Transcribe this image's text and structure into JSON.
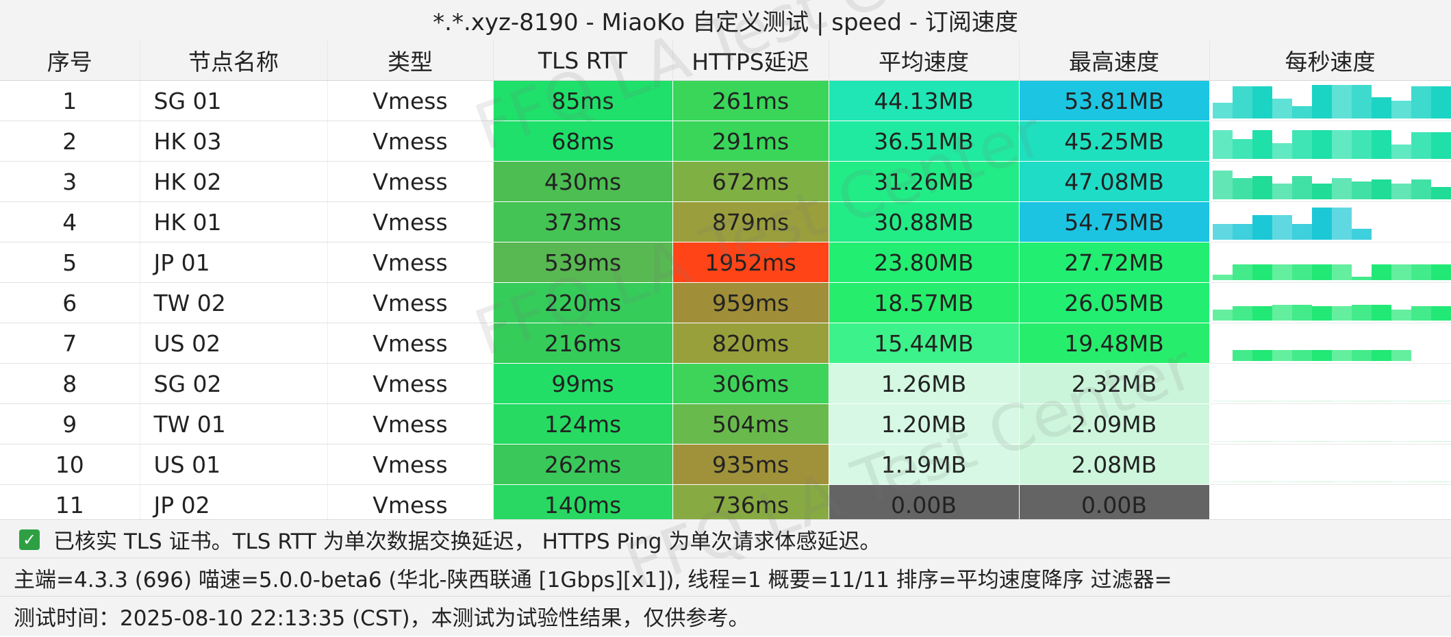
{
  "title": "*.*.xyz-8190 - MiaoKo 自定义测试 | speed - 订阅速度",
  "columns": [
    "序号",
    "节点名称",
    "类型",
    "TLS RTT",
    "HTTPS延迟",
    "平均速度",
    "最高速度",
    "每秒速度"
  ],
  "rows": [
    {
      "idx": "1",
      "name": "SG 01",
      "type": "Vmess",
      "tls": "85ms",
      "https": "261ms",
      "avg": "44.13MB",
      "max": "53.81MB",
      "tls_color": "#1ee06a",
      "https_color": "#3ad65a",
      "avg_color": "#1fe6b4",
      "max_color": "#1cc6e2"
    },
    {
      "idx": "2",
      "name": "HK 03",
      "type": "Vmess",
      "tls": "68ms",
      "https": "291ms",
      "avg": "36.51MB",
      "max": "45.25MB",
      "tls_color": "#1ee06a",
      "https_color": "#3ad65a",
      "avg_color": "#20eaa0",
      "max_color": "#1fe0be"
    },
    {
      "idx": "3",
      "name": "HK 02",
      "type": "Vmess",
      "tls": "430ms",
      "https": "672ms",
      "avg": "31.26MB",
      "max": "47.08MB",
      "tls_color": "#4cbe52",
      "https_color": "#7eb044",
      "avg_color": "#21ec86",
      "max_color": "#1edcc6"
    },
    {
      "idx": "4",
      "name": "HK 01",
      "type": "Vmess",
      "tls": "373ms",
      "https": "879ms",
      "avg": "30.88MB",
      "max": "54.75MB",
      "tls_color": "#44c454",
      "https_color": "#9a9e3c",
      "avg_color": "#21ec86",
      "max_color": "#1cc4e2"
    },
    {
      "idx": "5",
      "name": "JP 01",
      "type": "Vmess",
      "tls": "539ms",
      "https": "1952ms",
      "avg": "23.80MB",
      "max": "27.72MB",
      "tls_color": "#58b852",
      "https_color": "#ff4418",
      "avg_color": "#22ee72",
      "max_color": "#22ee72"
    },
    {
      "idx": "6",
      "name": "TW 02",
      "type": "Vmess",
      "tls": "220ms",
      "https": "959ms",
      "avg": "18.57MB",
      "max": "26.05MB",
      "tls_color": "#36cc5a",
      "https_color": "#a08e38",
      "avg_color": "#26ee6c",
      "max_color": "#22ee72"
    },
    {
      "idx": "7",
      "name": "US 02",
      "type": "Vmess",
      "tls": "216ms",
      "https": "820ms",
      "avg": "15.44MB",
      "max": "19.48MB",
      "tls_color": "#36cc5a",
      "https_color": "#98a03c",
      "avg_color": "#3cf28a",
      "max_color": "#26ee6c"
    },
    {
      "idx": "8",
      "name": "SG 02",
      "type": "Vmess",
      "tls": "99ms",
      "https": "306ms",
      "avg": "1.26MB",
      "max": "2.32MB",
      "tls_color": "#22de66",
      "https_color": "#3ed45a",
      "avg_color": "#d4f8e2",
      "max_color": "#cbf5da"
    },
    {
      "idx": "9",
      "name": "TW 01",
      "type": "Vmess",
      "tls": "124ms",
      "https": "504ms",
      "avg": "1.20MB",
      "max": "2.09MB",
      "tls_color": "#26da62",
      "https_color": "#68ba4c",
      "avg_color": "#d6f8e4",
      "max_color": "#cdf6dc"
    },
    {
      "idx": "10",
      "name": "US 01",
      "type": "Vmess",
      "tls": "262ms",
      "https": "935ms",
      "avg": "1.19MB",
      "max": "2.08MB",
      "tls_color": "#3ac85a",
      "https_color": "#a0923a",
      "avg_color": "#d6f8e4",
      "max_color": "#cdf6dc"
    },
    {
      "idx": "11",
      "name": "JP 02",
      "type": "Vmess",
      "tls": "140ms",
      "https": "736ms",
      "avg": "0.00B",
      "max": "0.00B",
      "tls_color": "#28d862",
      "https_color": "#88aa42",
      "avg_color": "#646464",
      "max_color": "#646464"
    }
  ],
  "sparklines": [
    [
      0.45,
      0.9,
      0.9,
      0.55,
      0.35,
      0.95,
      0.95,
      0.95,
      0.6,
      0.5,
      0.9,
      0.9
    ],
    [
      0.8,
      0.55,
      0.8,
      0.45,
      0.8,
      0.8,
      0.8,
      0.8,
      0.8,
      0.4,
      0.75,
      0.75
    ],
    [
      0.8,
      0.6,
      0.65,
      0.45,
      0.65,
      0.45,
      0.6,
      0.5,
      0.55,
      0.45,
      0.55,
      0.35
    ],
    [
      0.45,
      0.45,
      0.7,
      0.7,
      0.45,
      0.9,
      0.9,
      0.3,
      0.0,
      0.0,
      0.0,
      0.0
    ],
    [
      0.15,
      0.45,
      0.45,
      0.45,
      0.45,
      0.45,
      0.45,
      0.1,
      0.45,
      0.45,
      0.45,
      0.45
    ],
    [
      0.3,
      0.4,
      0.4,
      0.45,
      0.45,
      0.4,
      0.4,
      0.45,
      0.45,
      0.3,
      0.4,
      0.4
    ],
    [
      0.0,
      0.3,
      0.3,
      0.3,
      0.3,
      0.3,
      0.3,
      0.3,
      0.3,
      0.3,
      0.0,
      0.0
    ],
    [
      0.02,
      0.02,
      0.02,
      0.02,
      0.02,
      0.02,
      0.02,
      0.02,
      0.02,
      0.02,
      0.02,
      0.02
    ],
    [
      0.02,
      0.02,
      0.02,
      0.02,
      0.02,
      0.02,
      0.02,
      0.02,
      0.02,
      0.02,
      0.02,
      0.02
    ],
    [
      0.02,
      0.02,
      0.02,
      0.02,
      0.02,
      0.02,
      0.02,
      0.02,
      0.02,
      0.02,
      0.02,
      0.02
    ],
    [
      0,
      0,
      0,
      0,
      0,
      0,
      0,
      0,
      0,
      0,
      0,
      0
    ]
  ],
  "spark_colors": [
    "#1bd4c4",
    "#1ee0a8",
    "#20dc96",
    "#1cc8d6",
    "#22e876",
    "#22e876",
    "#22e876",
    "#c8f4d8",
    "#c8f4d8",
    "#c8f4d8",
    "#ffffff"
  ],
  "footer": {
    "line1": "已核实 TLS 证书。TLS RTT 为单次数据交换延迟， HTTPS Ping 为单次请求体感延迟。",
    "line2": "主端=4.3.3 (696) 喵速=5.0.0-beta6 (华北-陕西联通 [1Gbps][x1]), 线程=1 概要=11/11 排序=平均速度降序 过滤器=",
    "line3": "测试时间：2025-08-10 22:13:35 (CST)，本测试为试验性结果，仅供参考。",
    "check_icon": "✓"
  },
  "watermark": "FFQ.LA Test Center"
}
